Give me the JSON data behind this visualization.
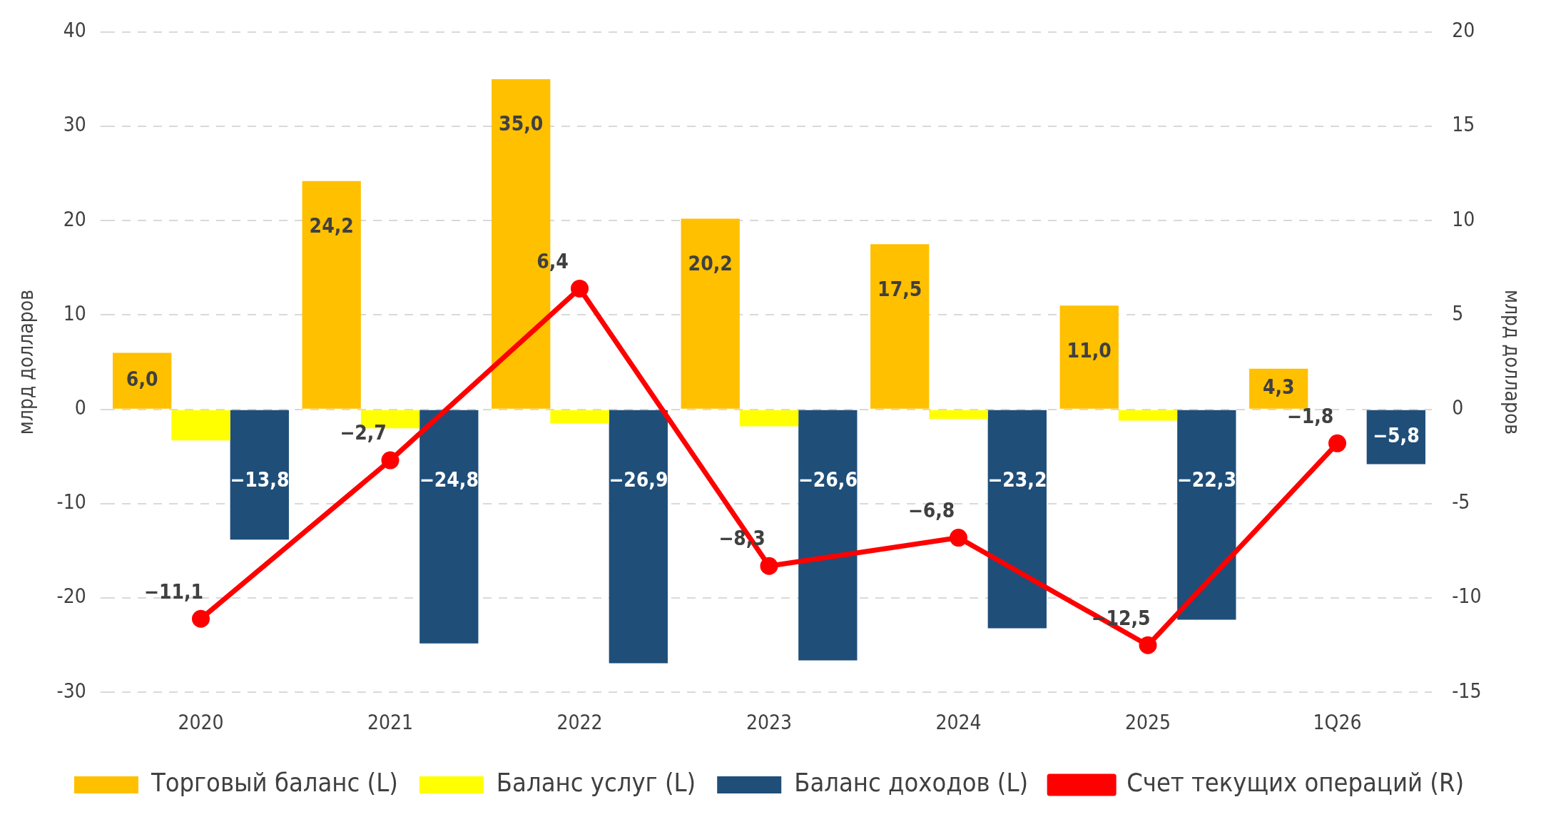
{
  "chart_data": {
    "type": "bar",
    "categories": [
      "2020",
      "2021",
      "2022",
      "2023",
      "2024",
      "2025",
      "1Q26"
    ],
    "ylabel": "млрд долларов",
    "y2label": "млрд долларов",
    "ylim": [
      -30,
      40
    ],
    "yticks": [
      -30,
      -20,
      -10,
      0,
      10,
      20,
      30,
      40
    ],
    "y2lim": [
      -15,
      20
    ],
    "y2ticks": [
      -15,
      -10,
      -5,
      0,
      5,
      10,
      15,
      20
    ],
    "grid": "y",
    "legend": "bottom",
    "marker": "circle",
    "series": [
      {
        "name": "Торговый баланс (L)",
        "color": "#ffc000",
        "values": [
          6.0,
          24.2,
          35.0,
          20.2,
          17.5,
          11.0,
          4.3
        ],
        "value_labels": [
          "6,0",
          "24,2",
          "35,0",
          "20,2",
          "17,5",
          "11,0",
          "4,3"
        ]
      },
      {
        "name": "Баланс услуг (L)",
        "color": "#ffff00",
        "values": [
          -3.3,
          -2.0,
          -1.5,
          -1.8,
          -1.0,
          -1.2,
          null
        ]
      },
      {
        "name": "Баланс доходов (L)",
        "color": "#1f4e79",
        "values": [
          -13.8,
          -24.8,
          -26.9,
          -26.6,
          -23.2,
          -22.3,
          -5.8
        ],
        "value_labels": [
          "−13,8",
          "−24,8",
          "−26,9",
          "−26,6",
          "−23,2",
          "−22,3",
          "−5,8"
        ]
      },
      {
        "name": "Счет текущих операций (R)",
        "type": "line",
        "axis": "y2",
        "color": "#ff0000",
        "values": [
          -11.1,
          -2.7,
          6.4,
          -8.3,
          -6.8,
          -12.5,
          -1.8
        ],
        "value_labels": [
          "−11,1",
          "−2,7",
          "6,4",
          "−8,3",
          "−6,8",
          "−12,5",
          "−1,8"
        ]
      }
    ]
  }
}
